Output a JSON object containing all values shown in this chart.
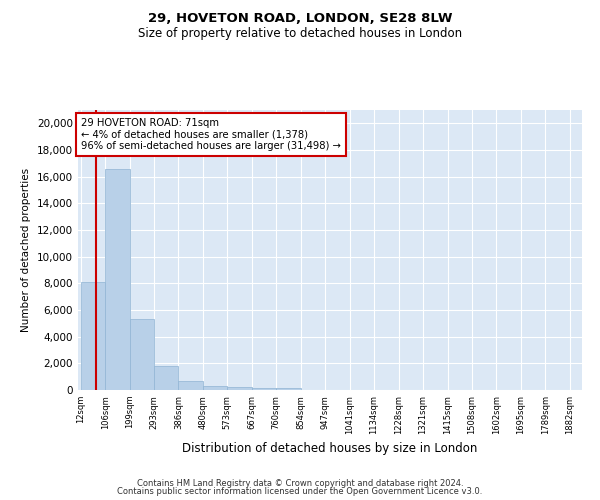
{
  "title1": "29, HOVETON ROAD, LONDON, SE28 8LW",
  "title2": "Size of property relative to detached houses in London",
  "xlabel": "Distribution of detached houses by size in London",
  "ylabel": "Number of detached properties",
  "bar_color": "#b8d0e8",
  "bar_edge_color": "#90b4d4",
  "vline_color": "#cc0000",
  "vline_x": 71,
  "annotation_title": "29 HOVETON ROAD: 71sqm",
  "annotation_line1": "← 4% of detached houses are smaller (1,378)",
  "annotation_line2": "96% of semi-detached houses are larger (31,498) →",
  "annotation_box_color": "#ffffff",
  "annotation_box_edge_color": "#cc0000",
  "bin_edges": [
    12,
    106,
    199,
    293,
    386,
    480,
    573,
    667,
    760,
    854,
    947,
    1041,
    1134,
    1228,
    1321,
    1415,
    1508,
    1602,
    1695,
    1789,
    1882
  ],
  "bin_labels": [
    "12sqm",
    "106sqm",
    "199sqm",
    "293sqm",
    "386sqm",
    "480sqm",
    "573sqm",
    "667sqm",
    "760sqm",
    "854sqm",
    "947sqm",
    "1041sqm",
    "1134sqm",
    "1228sqm",
    "1321sqm",
    "1415sqm",
    "1508sqm",
    "1602sqm",
    "1695sqm",
    "1789sqm",
    "1882sqm"
  ],
  "bar_heights": [
    8100,
    16600,
    5300,
    1800,
    650,
    320,
    190,
    150,
    120,
    0,
    0,
    0,
    0,
    0,
    0,
    0,
    0,
    0,
    0,
    0
  ],
  "ylim": [
    0,
    21000
  ],
  "yticks": [
    0,
    2000,
    4000,
    6000,
    8000,
    10000,
    12000,
    14000,
    16000,
    18000,
    20000
  ],
  "plot_bg_color": "#dce8f5",
  "footer1": "Contains HM Land Registry data © Crown copyright and database right 2024.",
  "footer2": "Contains public sector information licensed under the Open Government Licence v3.0."
}
